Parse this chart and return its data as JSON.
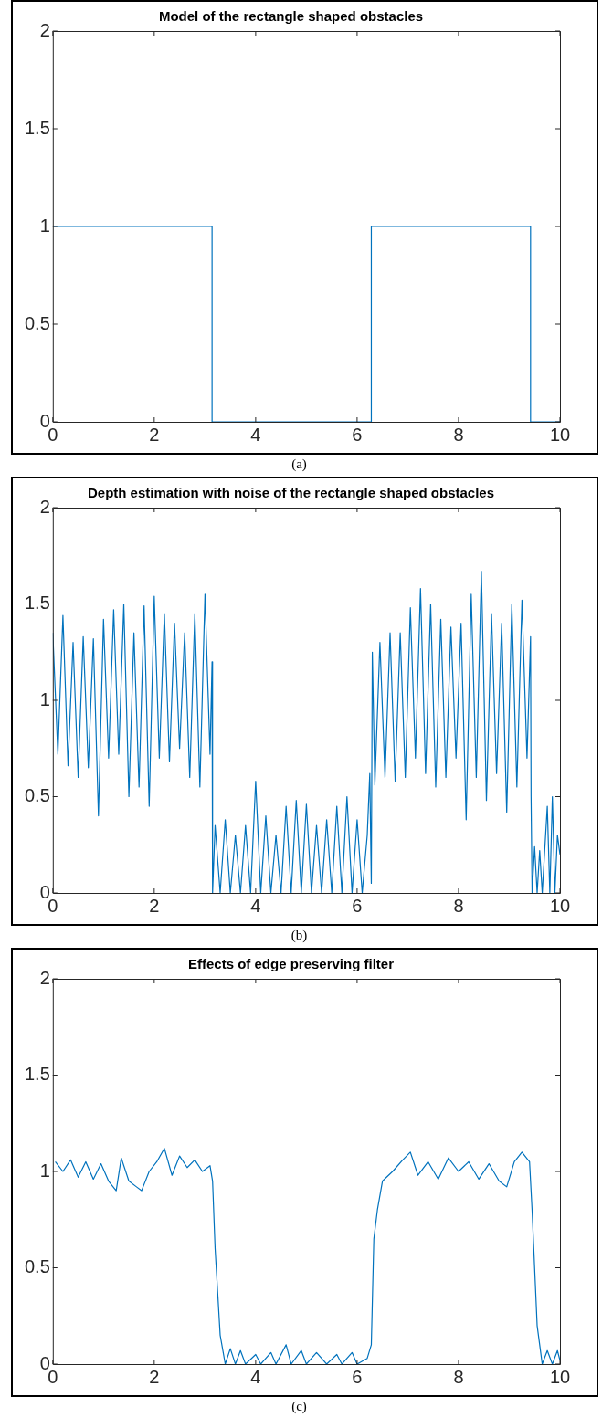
{
  "chart_data": [
    {
      "type": "line",
      "title": "Model of the rectangle shaped obstacles",
      "x": [
        0,
        3.14,
        3.14,
        6.28,
        6.28,
        9.42,
        9.42,
        10
      ],
      "values": [
        1,
        1,
        0,
        0,
        1,
        1,
        0,
        0
      ],
      "color": "#0072bd",
      "xlim": [
        0,
        10
      ],
      "ylim": [
        0,
        2
      ],
      "xticks": [
        0,
        2,
        4,
        6,
        8,
        10
      ],
      "yticks": [
        0,
        0.5,
        1,
        1.5,
        2
      ],
      "grid": false,
      "legend": false,
      "annotations": [
        "(a)"
      ]
    },
    {
      "type": "line",
      "title": "Depth estimation with noise of the rectangle shaped obstacles",
      "x": [
        0,
        0.1,
        0.2,
        0.3,
        0.4,
        0.5,
        0.6,
        0.7,
        0.8,
        0.9,
        1,
        1.1,
        1.2,
        1.3,
        1.4,
        1.5,
        1.6,
        1.7,
        1.8,
        1.9,
        2,
        2.1,
        2.2,
        2.3,
        2.4,
        2.5,
        2.6,
        2.7,
        2.8,
        2.9,
        3,
        3.1,
        3.14,
        3.15,
        3.2,
        3.3,
        3.4,
        3.5,
        3.6,
        3.7,
        3.8,
        3.9,
        4,
        4.1,
        4.2,
        4.3,
        4.4,
        4.5,
        4.6,
        4.7,
        4.8,
        4.9,
        5,
        5.1,
        5.2,
        5.3,
        5.4,
        5.5,
        5.6,
        5.7,
        5.8,
        5.9,
        6,
        6.1,
        6.2,
        6.25,
        6.28,
        6.3,
        6.35,
        6.45,
        6.55,
        6.65,
        6.75,
        6.85,
        6.95,
        7.05,
        7.15,
        7.25,
        7.35,
        7.45,
        7.55,
        7.65,
        7.75,
        7.85,
        7.95,
        8.05,
        8.15,
        8.25,
        8.35,
        8.45,
        8.55,
        8.65,
        8.75,
        8.85,
        8.95,
        9.05,
        9.15,
        9.25,
        9.35,
        9.42,
        9.43,
        9.45,
        9.5,
        9.55,
        9.6,
        9.65,
        9.75,
        9.8,
        9.85,
        9.9,
        9.95,
        10
      ],
      "values": [
        1.35,
        0.72,
        1.44,
        0.66,
        1.3,
        0.6,
        1.33,
        0.65,
        1.32,
        0.4,
        1.42,
        0.7,
        1.47,
        0.72,
        1.5,
        0.5,
        1.35,
        0.55,
        1.49,
        0.45,
        1.54,
        0.7,
        1.45,
        0.68,
        1.4,
        0.75,
        1.35,
        0.6,
        1.45,
        0.55,
        1.55,
        0.72,
        1.2,
        0,
        0.35,
        0,
        0.38,
        0,
        0.3,
        0,
        0.35,
        0,
        0.58,
        0,
        0.4,
        0,
        0.3,
        0,
        0.45,
        0,
        0.48,
        0,
        0.46,
        0,
        0.35,
        0,
        0.38,
        0,
        0.45,
        0,
        0.5,
        0,
        0.38,
        0,
        0.3,
        0.62,
        0.05,
        1.25,
        0.56,
        1.3,
        0.6,
        1.35,
        0.58,
        1.35,
        0.6,
        1.48,
        0.7,
        1.58,
        0.62,
        1.5,
        0.55,
        1.42,
        0.6,
        1.38,
        0.7,
        1.4,
        0.38,
        1.55,
        0.6,
        1.67,
        0.48,
        1.45,
        0.62,
        1.4,
        0.42,
        1.5,
        0.55,
        1.52,
        0.7,
        1.33,
        0.5,
        0,
        0.24,
        0,
        0.22,
        0,
        0.45,
        0,
        0.5,
        0,
        0.3,
        0.2
      ],
      "color": "#0072bd",
      "xlim": [
        0,
        10
      ],
      "ylim": [
        0,
        2
      ],
      "xticks": [
        0,
        2,
        4,
        6,
        8,
        10
      ],
      "yticks": [
        0,
        0.5,
        1,
        1.5,
        2
      ],
      "grid": false,
      "legend": false,
      "annotations": [
        "(b)"
      ]
    },
    {
      "type": "line",
      "title": "Effects of edge preserving filter",
      "x": [
        0.05,
        0.2,
        0.35,
        0.5,
        0.65,
        0.8,
        0.95,
        1.1,
        1.25,
        1.35,
        1.5,
        1.65,
        1.75,
        1.9,
        2.05,
        2.2,
        2.35,
        2.5,
        2.65,
        2.8,
        2.95,
        3.1,
        3.15,
        3.2,
        3.3,
        3.4,
        3.5,
        3.6,
        3.7,
        3.8,
        4,
        4.1,
        4.3,
        4.4,
        4.6,
        4.7,
        4.9,
        5,
        5.2,
        5.4,
        5.6,
        5.7,
        5.9,
        6,
        6.2,
        6.28,
        6.33,
        6.4,
        6.5,
        6.7,
        6.9,
        7.05,
        7.2,
        7.4,
        7.6,
        7.8,
        8,
        8.2,
        8.4,
        8.6,
        8.8,
        8.95,
        9.1,
        9.25,
        9.4,
        9.45,
        9.55,
        9.65,
        9.75,
        9.85,
        9.95,
        10
      ],
      "values": [
        1.05,
        1,
        1.06,
        0.97,
        1.05,
        0.96,
        1.04,
        0.95,
        0.9,
        1.07,
        0.95,
        0.92,
        0.9,
        1,
        1.05,
        1.12,
        0.98,
        1.08,
        1.02,
        1.06,
        1,
        1.03,
        0.95,
        0.6,
        0.15,
        0,
        0.08,
        0,
        0.07,
        0,
        0.05,
        0,
        0.06,
        0,
        0.1,
        0,
        0.07,
        0,
        0.06,
        0,
        0.05,
        0,
        0.06,
        0,
        0.03,
        0.1,
        0.65,
        0.8,
        0.95,
        1,
        1.06,
        1.1,
        0.98,
        1.05,
        0.96,
        1.07,
        1,
        1.05,
        0.96,
        1.04,
        0.95,
        0.92,
        1.05,
        1.1,
        1.05,
        0.8,
        0.2,
        0,
        0.07,
        0,
        0.07,
        0.02
      ],
      "color": "#0072bd",
      "xlim": [
        0,
        10
      ],
      "ylim": [
        0,
        2
      ],
      "xticks": [
        0,
        2,
        4,
        6,
        8,
        10
      ],
      "yticks": [
        0,
        0.5,
        1,
        1.5,
        2
      ],
      "grid": false,
      "legend": false,
      "annotations": [
        "(c)"
      ]
    }
  ]
}
